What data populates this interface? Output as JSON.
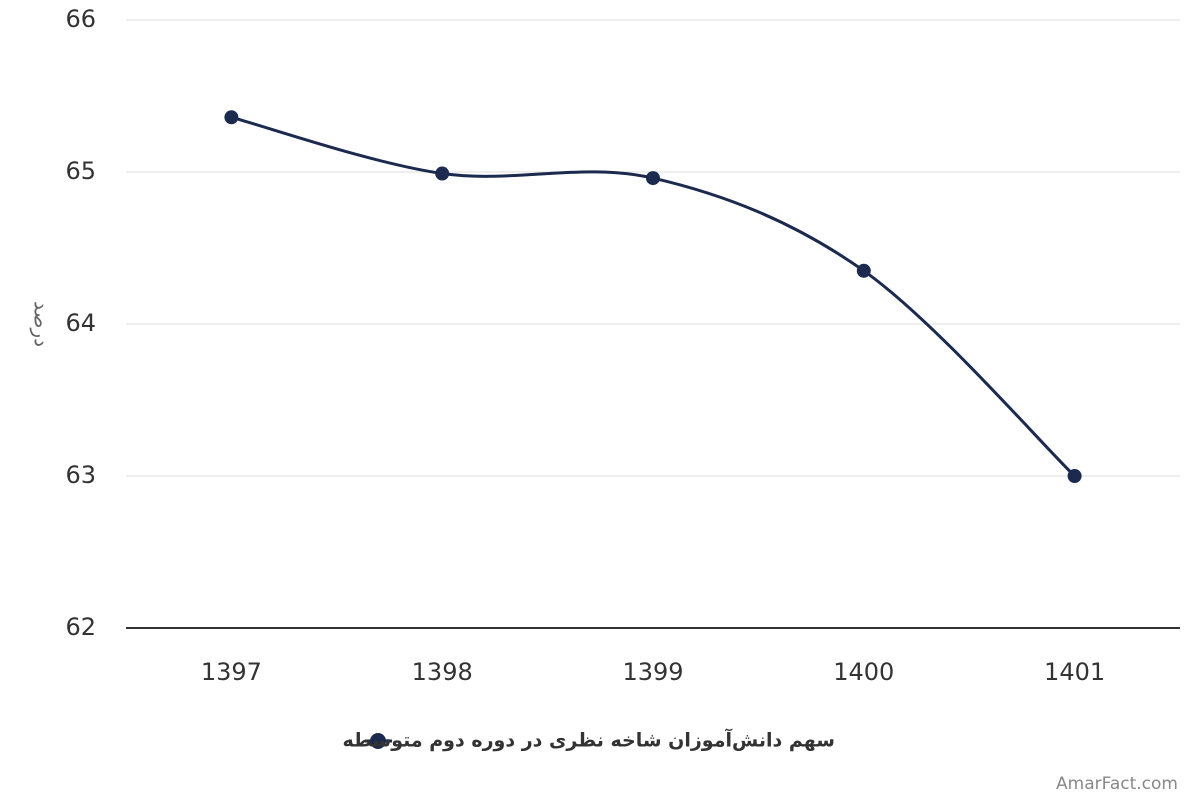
{
  "chart_data": {
    "type": "line",
    "y_label": "درصد",
    "categories": [
      "1397",
      "1398",
      "1399",
      "1400",
      "1401"
    ],
    "series": [
      {
        "name": "سهم دانش‌آموزان شاخه نظری در دوره دوم متوسطه",
        "color": "#1b2a4e",
        "values": [
          65.36,
          64.99,
          64.96,
          64.35,
          63.0
        ]
      }
    ],
    "ylim": [
      62,
      66
    ],
    "yticks": [
      62,
      63,
      64,
      65,
      66
    ],
    "grid": true,
    "credit": "AmarFact.com"
  }
}
